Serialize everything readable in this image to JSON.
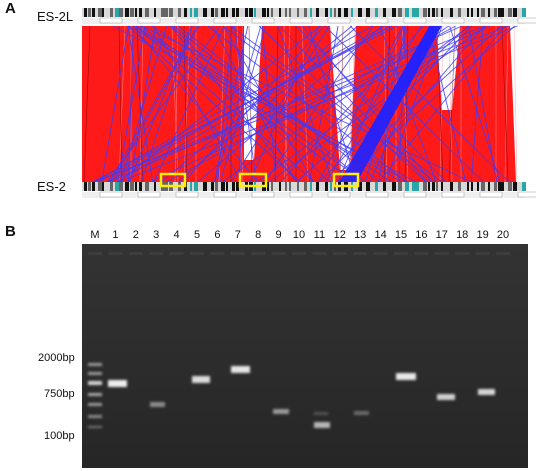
{
  "panelA": {
    "letter": "A",
    "top_genome": "ES-2L",
    "bottom_genome": "ES-2",
    "colors": {
      "forward": "#ff1a1a",
      "inverted": "#3a3aff",
      "highlight": "#ffee00"
    },
    "highlight_boxes": 3
  },
  "panelB": {
    "letter": "B",
    "lanes": [
      "M",
      "1",
      "2",
      "3",
      "4",
      "5",
      "6",
      "7",
      "8",
      "9",
      "10",
      "11",
      "12",
      "13",
      "14",
      "15",
      "16",
      "17",
      "18",
      "19",
      "20"
    ],
    "size_markers": [
      "2000bp",
      "750bp",
      "100bp"
    ],
    "gel_background": "#2c2c2c"
  }
}
